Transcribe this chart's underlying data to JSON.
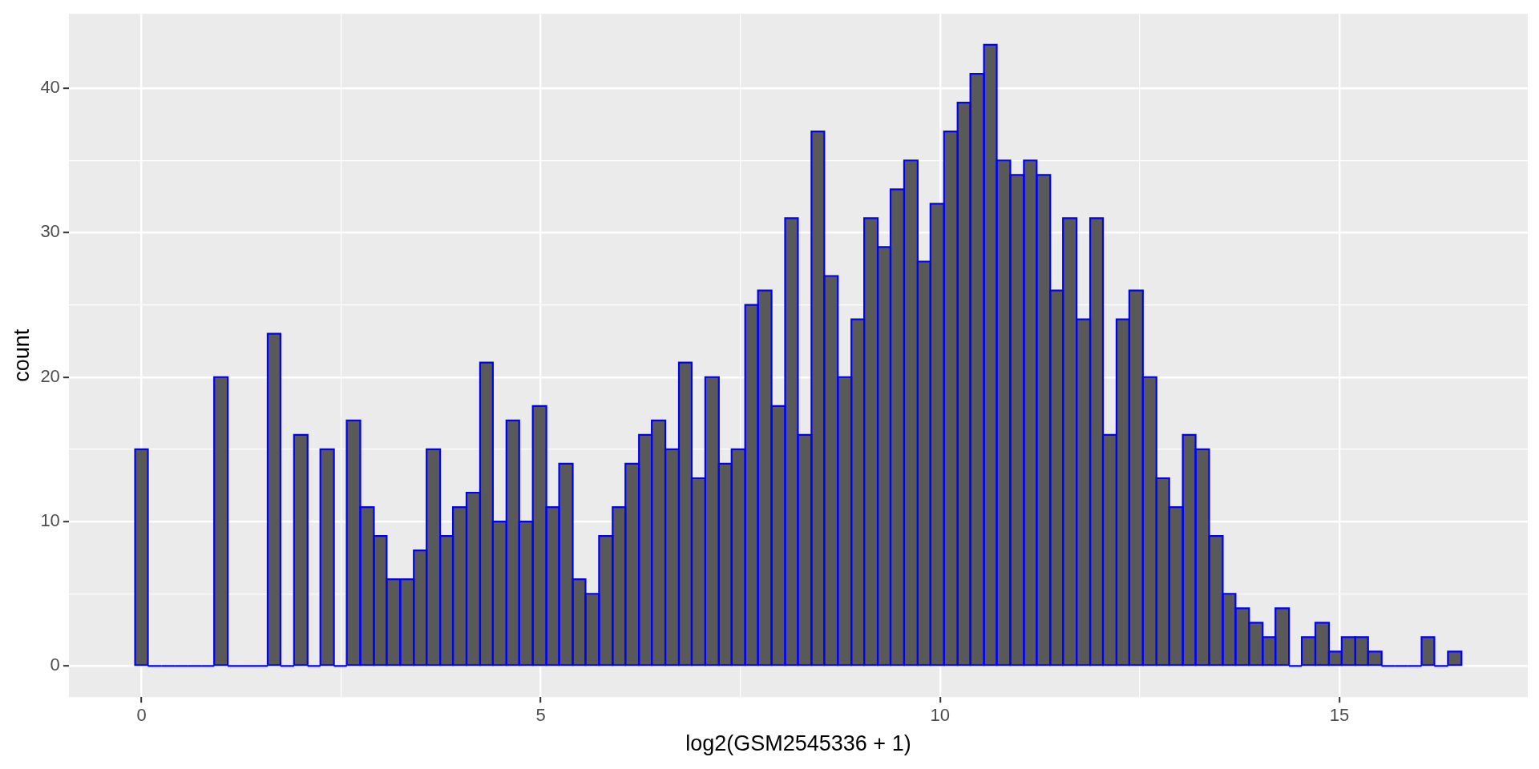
{
  "chart_data": {
    "type": "histogram",
    "xlabel": "log2(GSM2545336 + 1)",
    "ylabel": "count",
    "color": "#595959",
    "bins": [
      -0.08,
      0.08,
      0.25,
      0.42,
      0.58,
      0.75,
      0.91,
      1.08,
      1.25,
      1.41,
      1.58,
      1.74,
      1.91,
      2.08,
      2.24,
      2.41,
      2.57,
      2.74,
      2.91,
      3.07,
      3.24,
      3.41,
      3.57,
      3.74,
      3.9,
      4.07,
      4.24,
      4.4,
      4.57,
      4.73,
      4.9,
      5.07,
      5.23,
      5.4,
      5.56,
      5.73,
      5.9,
      6.06,
      6.23,
      6.39,
      6.56,
      6.73,
      6.89,
      7.06,
      7.23,
      7.39,
      7.56,
      7.72,
      7.89,
      8.06,
      8.22,
      8.39,
      8.55,
      8.72,
      8.89,
      9.05,
      9.22,
      9.38,
      9.55,
      9.72,
      9.88,
      10.05,
      10.22,
      10.38,
      10.55,
      10.71,
      10.88,
      11.05,
      11.21,
      11.38,
      11.54,
      11.71,
      11.88,
      12.04,
      12.21,
      12.37,
      12.54,
      12.71,
      12.87,
      13.04,
      13.2,
      13.37,
      13.54,
      13.7,
      13.87,
      14.04,
      14.2,
      14.37,
      14.53,
      14.7,
      14.87,
      15.03,
      15.2,
      15.36,
      15.53,
      15.7,
      15.86,
      16.03,
      16.19,
      16.36,
      16.53
    ],
    "values": [
      15,
      0,
      0,
      0,
      0,
      0,
      20,
      0,
      0,
      0,
      23,
      0,
      16,
      0,
      15,
      0,
      17,
      11,
      9,
      6,
      6,
      8,
      15,
      9,
      11,
      12,
      21,
      10,
      17,
      10,
      18,
      11,
      14,
      6,
      5,
      9,
      11,
      14,
      16,
      17,
      15,
      21,
      13,
      20,
      14,
      15,
      25,
      26,
      18,
      31,
      16,
      37,
      27,
      20,
      24,
      31,
      29,
      33,
      35,
      28,
      32,
      37,
      39,
      41,
      43,
      35,
      34,
      35,
      34,
      26,
      31,
      24,
      31,
      16,
      24,
      26,
      20,
      13,
      11,
      16,
      15,
      9,
      5,
      4,
      3,
      2,
      4,
      0,
      2,
      3,
      1,
      2,
      2,
      1,
      0,
      0,
      0,
      2,
      0,
      1
    ],
    "xlim": [
      -0.91,
      17.36
    ],
    "xticks": [
      0,
      {
        "value": 2.5,
        "label": null
      },
      5,
      {
        "value": 7.5,
        "label": null
      },
      10,
      {
        "value": 12.5,
        "label": null
      },
      15
    ],
    "ylim": [
      -2.15,
      45.15
    ],
    "yticks": [
      0,
      {
        "value": 5,
        "label": null
      },
      10,
      {
        "value": 15,
        "label": null
      },
      20,
      {
        "value": 25,
        "label": null
      },
      30,
      {
        "value": 35,
        "label": null
      },
      40
    ],
    "grid": true
  }
}
